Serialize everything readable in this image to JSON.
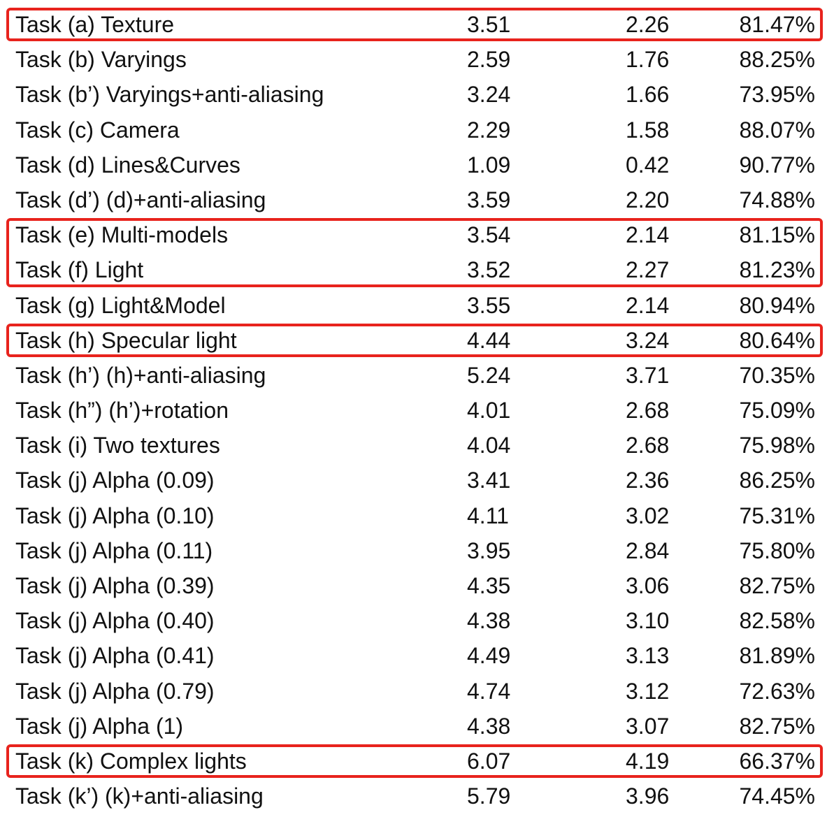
{
  "accent_color": "#e8231d",
  "rows": [
    {
      "task": "Task (a) Texture",
      "v1": "3.51",
      "v2": "2.26",
      "v3": "81.47%"
    },
    {
      "task": "Task (b) Varyings",
      "v1": "2.59",
      "v2": "1.76",
      "v3": "88.25%"
    },
    {
      "task": "Task (b’) Varyings+anti-aliasing",
      "v1": "3.24",
      "v2": "1.66",
      "v3": "73.95%"
    },
    {
      "task": "Task (c) Camera",
      "v1": "2.29",
      "v2": "1.58",
      "v3": "88.07%"
    },
    {
      "task": "Task (d) Lines&Curves",
      "v1": "1.09",
      "v2": "0.42",
      "v3": "90.77%"
    },
    {
      "task": "Task (d’) (d)+anti-aliasing",
      "v1": "3.59",
      "v2": "2.20",
      "v3": "74.88%"
    },
    {
      "task": "Task (e) Multi-models",
      "v1": "3.54",
      "v2": "2.14",
      "v3": "81.15%"
    },
    {
      "task": "Task (f) Light",
      "v1": "3.52",
      "v2": "2.27",
      "v3": "81.23%"
    },
    {
      "task": "Task (g) Light&Model",
      "v1": "3.55",
      "v2": "2.14",
      "v3": "80.94%"
    },
    {
      "task": "Task (h) Specular light",
      "v1": "4.44",
      "v2": "3.24",
      "v3": "80.64%"
    },
    {
      "task": "Task (h’) (h)+anti-aliasing",
      "v1": "5.24",
      "v2": "3.71",
      "v3": "70.35%"
    },
    {
      "task": "Task (h”) (h’)+rotation",
      "v1": "4.01",
      "v2": "2.68",
      "v3": "75.09%"
    },
    {
      "task": "Task (i) Two textures",
      "v1": "4.04",
      "v2": "2.68",
      "v3": "75.98%"
    },
    {
      "task": "Task (j) Alpha (0.09)",
      "v1": "3.41",
      "v2": "2.36",
      "v3": "86.25%"
    },
    {
      "task": "Task (j) Alpha (0.10)",
      "v1": "4.11",
      "v2": "3.02",
      "v3": "75.31%"
    },
    {
      "task": "Task (j) Alpha (0.11)",
      "v1": "3.95",
      "v2": "2.84",
      "v3": "75.80%"
    },
    {
      "task": "Task (j) Alpha (0.39)",
      "v1": "4.35",
      "v2": "3.06",
      "v3": "82.75%"
    },
    {
      "task": "Task (j) Alpha (0.40)",
      "v1": "4.38",
      "v2": "3.10",
      "v3": "82.58%"
    },
    {
      "task": "Task (j) Alpha (0.41)",
      "v1": "4.49",
      "v2": "3.13",
      "v3": "81.89%"
    },
    {
      "task": "Task (j) Alpha (0.79)",
      "v1": "4.74",
      "v2": "3.12",
      "v3": "72.63%"
    },
    {
      "task": "Task (j) Alpha (1)",
      "v1": "4.38",
      "v2": "3.07",
      "v3": "82.75%"
    },
    {
      "task": "Task (k) Complex lights",
      "v1": "6.07",
      "v2": "4.19",
      "v3": "66.37%"
    },
    {
      "task": "Task (k’) (k)+anti-aliasing",
      "v1": "5.79",
      "v2": "3.96",
      "v3": "74.45%"
    }
  ],
  "highlight_groups": [
    {
      "label": "highlight-task-a",
      "rows": [
        0,
        0
      ]
    },
    {
      "label": "highlight-task-e-f",
      "rows": [
        6,
        7
      ]
    },
    {
      "label": "highlight-task-h",
      "rows": [
        9,
        9
      ]
    },
    {
      "label": "highlight-task-k",
      "rows": [
        21,
        21
      ]
    }
  ]
}
